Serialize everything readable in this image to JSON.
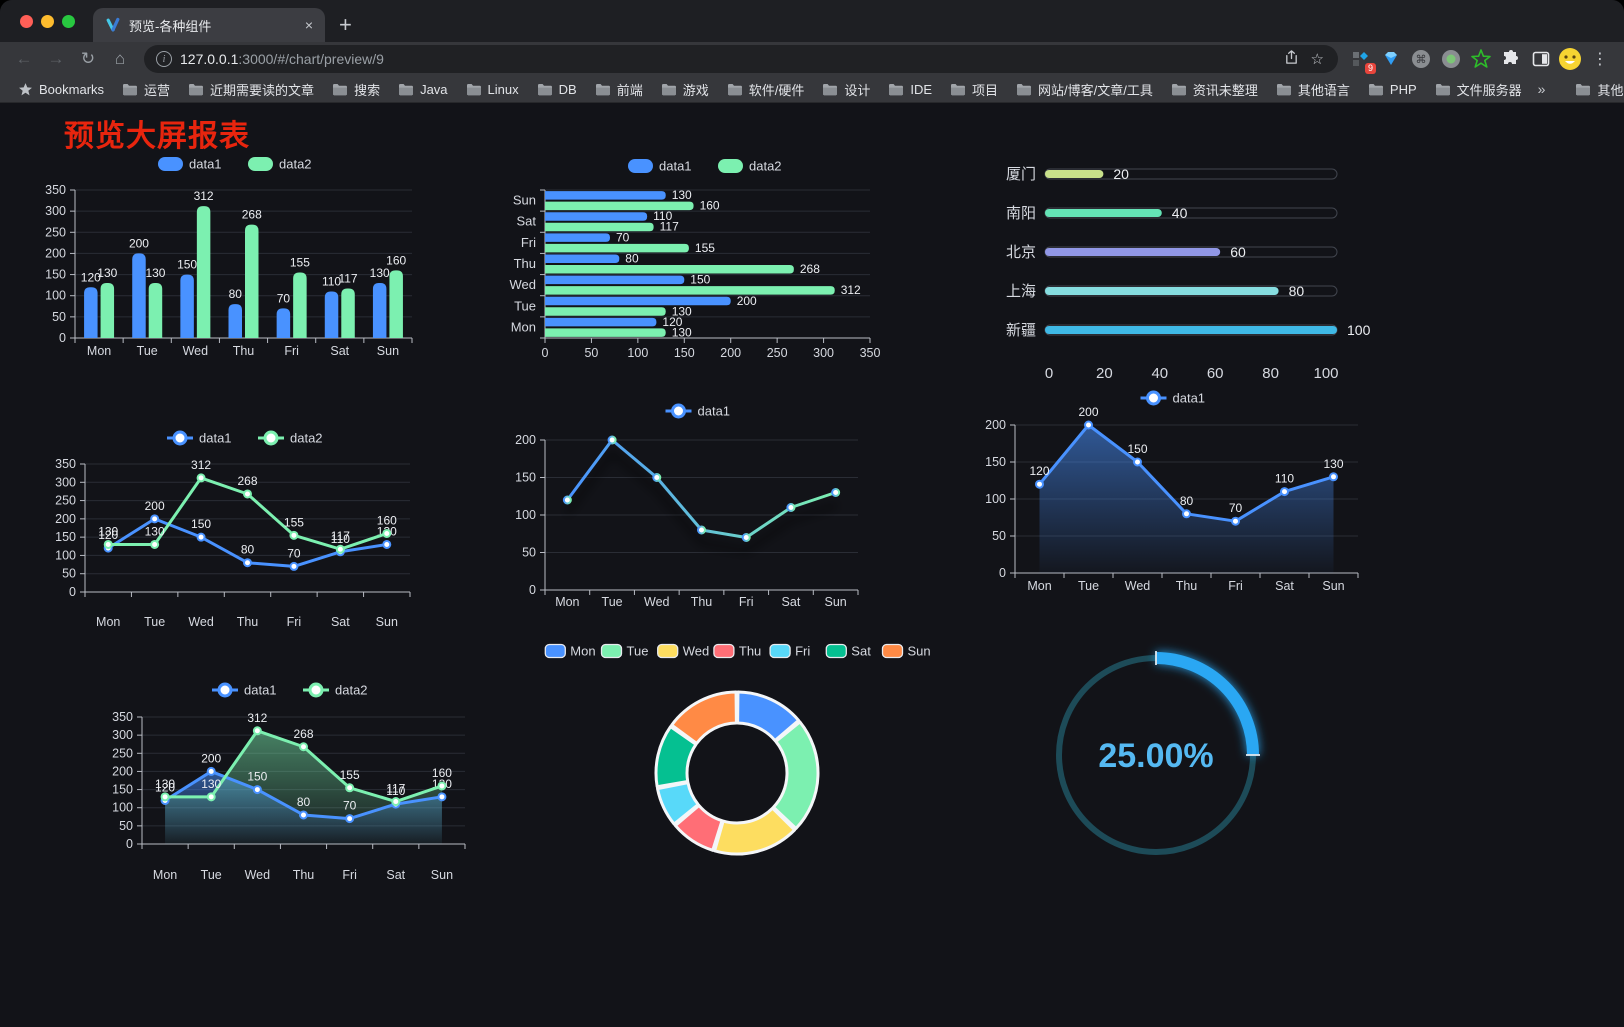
{
  "browser": {
    "tab_title": "预览-各种组件",
    "new_tab_label": "+",
    "close_label": "×",
    "url_host": "127.0.0.1",
    "url_rest": ":3000/#/chart/preview/9",
    "extension_badge": "9",
    "toolbar_icon_names": [
      "back-icon",
      "forward-icon",
      "reload-icon",
      "home-icon",
      "info-icon",
      "share-icon",
      "bookmark-star-icon",
      "proxy-grid-extension-icon",
      "gem-extension-icon",
      "command-extension-icon",
      "record-extension-icon",
      "green-star-extension-icon",
      "puzzle-extensions-icon",
      "side-panel-icon",
      "profile-avatar",
      "menu-kebab-icon"
    ]
  },
  "bookmarks_bar": {
    "items": [
      {
        "label": "Bookmarks",
        "icon": "star"
      },
      {
        "label": "运营",
        "icon": "folder"
      },
      {
        "label": "近期需要读的文章",
        "icon": "folder"
      },
      {
        "label": "搜索",
        "icon": "folder"
      },
      {
        "label": "Java",
        "icon": "folder"
      },
      {
        "label": "Linux",
        "icon": "folder"
      },
      {
        "label": "DB",
        "icon": "folder"
      },
      {
        "label": "前端",
        "icon": "folder"
      },
      {
        "label": "游戏",
        "icon": "folder"
      },
      {
        "label": "软件/硬件",
        "icon": "folder"
      },
      {
        "label": "设计",
        "icon": "folder"
      },
      {
        "label": "IDE",
        "icon": "folder"
      },
      {
        "label": "项目",
        "icon": "folder"
      },
      {
        "label": "网站/博客/文章/工具",
        "icon": "folder"
      },
      {
        "label": "资讯未整理",
        "icon": "folder"
      },
      {
        "label": "其他语言",
        "icon": "folder"
      },
      {
        "label": "PHP",
        "icon": "folder"
      },
      {
        "label": "文件服务器",
        "icon": "folder"
      }
    ],
    "overflow_chevron": "»",
    "other_bookmarks": {
      "label": "其他书签",
      "icon": "folder"
    }
  },
  "page": {
    "title": "预览大屏报表",
    "title_color": "#e8250e",
    "background": "#121318"
  },
  "palette": {
    "blue": "#4992ff",
    "green": "#7cf0b0",
    "yellow": "#fddd60",
    "red": "#ff6e76",
    "lightblue": "#58d9f9",
    "teal": "#05c091",
    "orange": "#ff8a45",
    "axis": "#b9bcc4",
    "grid": "#2a2d35",
    "tick_label": "#d6d9e0",
    "value_label": "#eceef2"
  },
  "chart_data": [
    {
      "id": "grouped-bar",
      "type": "bar",
      "title": "",
      "categories": [
        "Mon",
        "Tue",
        "Wed",
        "Thu",
        "Fri",
        "Sat",
        "Sun"
      ],
      "series": [
        {
          "name": "data1",
          "color": "#4992ff",
          "values": [
            120,
            200,
            150,
            80,
            70,
            110,
            130
          ]
        },
        {
          "name": "data2",
          "color": "#7cf0b0",
          "values": [
            130,
            130,
            312,
            268,
            155,
            117,
            160
          ]
        }
      ],
      "ylim": [
        0,
        350
      ],
      "yticks": [
        0,
        50,
        100,
        150,
        200,
        250,
        300,
        350
      ],
      "legend": [
        "data1",
        "data2"
      ],
      "legend_position": "top",
      "grid": true,
      "value_labels": true
    },
    {
      "id": "horizontal-bar",
      "type": "bar",
      "orientation": "horizontal",
      "categories": [
        "Mon",
        "Tue",
        "Wed",
        "Thu",
        "Fri",
        "Sat",
        "Sun"
      ],
      "display_order_top_to_bottom": [
        "Sun",
        "Sat",
        "Fri",
        "Thu",
        "Wed",
        "Tue",
        "Mon"
      ],
      "series": [
        {
          "name": "data1",
          "color": "#4992ff",
          "values": [
            120,
            200,
            150,
            80,
            70,
            110,
            130
          ]
        },
        {
          "name": "data2",
          "color": "#7cf0b0",
          "values": [
            130,
            130,
            312,
            268,
            155,
            117,
            160
          ]
        }
      ],
      "xlim": [
        0,
        350
      ],
      "xticks": [
        0,
        50,
        100,
        150,
        200,
        250,
        300,
        350
      ],
      "legend": [
        "data1",
        "data2"
      ],
      "legend_position": "top",
      "grid": true,
      "value_labels": true
    },
    {
      "id": "progress",
      "type": "bar",
      "subtype": "progress-list",
      "items": [
        {
          "label": "厦门",
          "value": 20,
          "color": "#c8e08a"
        },
        {
          "label": "南阳",
          "value": 40,
          "color": "#64e3b5"
        },
        {
          "label": "北京",
          "value": 60,
          "color": "#9197e6"
        },
        {
          "label": "上海",
          "value": 80,
          "color": "#86dde0"
        },
        {
          "label": "新疆",
          "value": 100,
          "color": "#3fb9e6"
        }
      ],
      "xlim": [
        0,
        100
      ],
      "xticks": [
        0,
        20,
        40,
        60,
        80,
        100
      ],
      "grid": false
    },
    {
      "id": "line-dual",
      "type": "line",
      "categories": [
        "Mon",
        "Tue",
        "Wed",
        "Thu",
        "Fri",
        "Sat",
        "Sun"
      ],
      "series": [
        {
          "name": "data1",
          "color": "#4992ff",
          "values": [
            120,
            200,
            150,
            80,
            70,
            110,
            130
          ]
        },
        {
          "name": "data2",
          "color": "#7cf0b0",
          "values": [
            130,
            130,
            312,
            268,
            155,
            117,
            160
          ]
        }
      ],
      "ylim": [
        0,
        350
      ],
      "yticks": [
        0,
        50,
        100,
        150,
        200,
        250,
        300,
        350
      ],
      "legend": [
        "data1",
        "data2"
      ],
      "legend_position": "top",
      "grid": true,
      "value_labels": true,
      "area": false
    },
    {
      "id": "line-gradient",
      "type": "line",
      "categories": [
        "Mon",
        "Tue",
        "Wed",
        "Thu",
        "Fri",
        "Sat",
        "Sun"
      ],
      "series": [
        {
          "name": "data1",
          "color_gradient": [
            "#4992ff",
            "#7cf0b0"
          ],
          "values": [
            120,
            200,
            150,
            80,
            70,
            110,
            130
          ]
        }
      ],
      "ylim": [
        0,
        200
      ],
      "yticks": [
        0,
        50,
        100,
        150,
        200
      ],
      "legend": [
        "data1"
      ],
      "legend_position": "top",
      "grid": true,
      "value_labels": false,
      "shadow": true,
      "area": false
    },
    {
      "id": "line-area-single",
      "type": "area",
      "categories": [
        "Mon",
        "Tue",
        "Wed",
        "Thu",
        "Fri",
        "Sat",
        "Sun"
      ],
      "series": [
        {
          "name": "data1",
          "color": "#4992ff",
          "values": [
            120,
            200,
            150,
            80,
            70,
            110,
            130
          ]
        }
      ],
      "ylim": [
        0,
        200
      ],
      "yticks": [
        0,
        50,
        100,
        150,
        200
      ],
      "legend": [
        "data1"
      ],
      "legend_position": "top",
      "grid": true,
      "value_labels": true,
      "area": true
    },
    {
      "id": "line-area-dual",
      "type": "area",
      "categories": [
        "Mon",
        "Tue",
        "Wed",
        "Thu",
        "Fri",
        "Sat",
        "Sun"
      ],
      "series": [
        {
          "name": "data1",
          "color": "#4992ff",
          "values": [
            120,
            200,
            150,
            80,
            70,
            110,
            130
          ]
        },
        {
          "name": "data2",
          "color": "#7cf0b0",
          "values": [
            130,
            130,
            312,
            268,
            155,
            117,
            160
          ]
        }
      ],
      "ylim": [
        0,
        350
      ],
      "yticks": [
        0,
        50,
        100,
        150,
        200,
        250,
        300,
        350
      ],
      "legend": [
        "data1",
        "data2"
      ],
      "legend_position": "top",
      "grid": true,
      "value_labels": true,
      "area": true
    },
    {
      "id": "donut",
      "type": "pie",
      "subtype": "donut-rounded",
      "categories": [
        "Mon",
        "Tue",
        "Wed",
        "Thu",
        "Fri",
        "Sat",
        "Sun"
      ],
      "values": [
        120,
        200,
        150,
        80,
        70,
        110,
        130
      ],
      "colors": [
        "#4992ff",
        "#7cf0b0",
        "#fddd60",
        "#ff6e76",
        "#58d9f9",
        "#05c091",
        "#ff8a45"
      ],
      "legend": [
        "Mon",
        "Tue",
        "Wed",
        "Thu",
        "Fri",
        "Sat",
        "Sun"
      ],
      "legend_position": "top",
      "border_color": "#f4f6f8"
    },
    {
      "id": "gauge",
      "type": "gauge",
      "value": 25,
      "label": "25.00%",
      "range": [
        0,
        100
      ],
      "arc_color": "#2ba7f3",
      "track_color": "#1d4b58",
      "text_color": "#55b9f2"
    }
  ]
}
